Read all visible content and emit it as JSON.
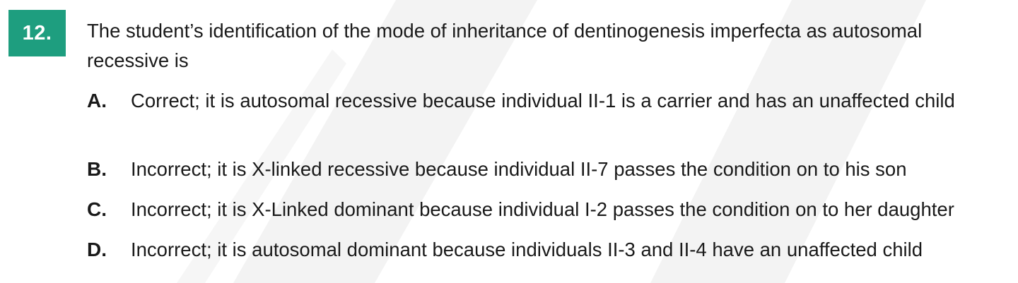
{
  "question": {
    "number": "12.",
    "stem": "The student’s identification of the mode of inheritance of dentinogenesis imperfecta as autosomal recessive is"
  },
  "options": [
    {
      "letter": "A.",
      "text": "Correct; it is autosomal recessive because individual II-1 is a carrier and has an unaffected child"
    },
    {
      "letter": "B.",
      "text": "Incorrect; it is X-linked recessive because individual II-7 passes the condition on to his son"
    },
    {
      "letter": "C.",
      "text": "Incorrect; it is X-Linked dominant because individual I-2 passes the condition on to her daughter"
    },
    {
      "letter": "D.",
      "text": "Incorrect; it is autosomal dominant because individuals II-3 and II-4 have an unaffected child"
    }
  ],
  "colors": {
    "badge": "#1e9e7f",
    "watermark": "#f2f2f2"
  }
}
